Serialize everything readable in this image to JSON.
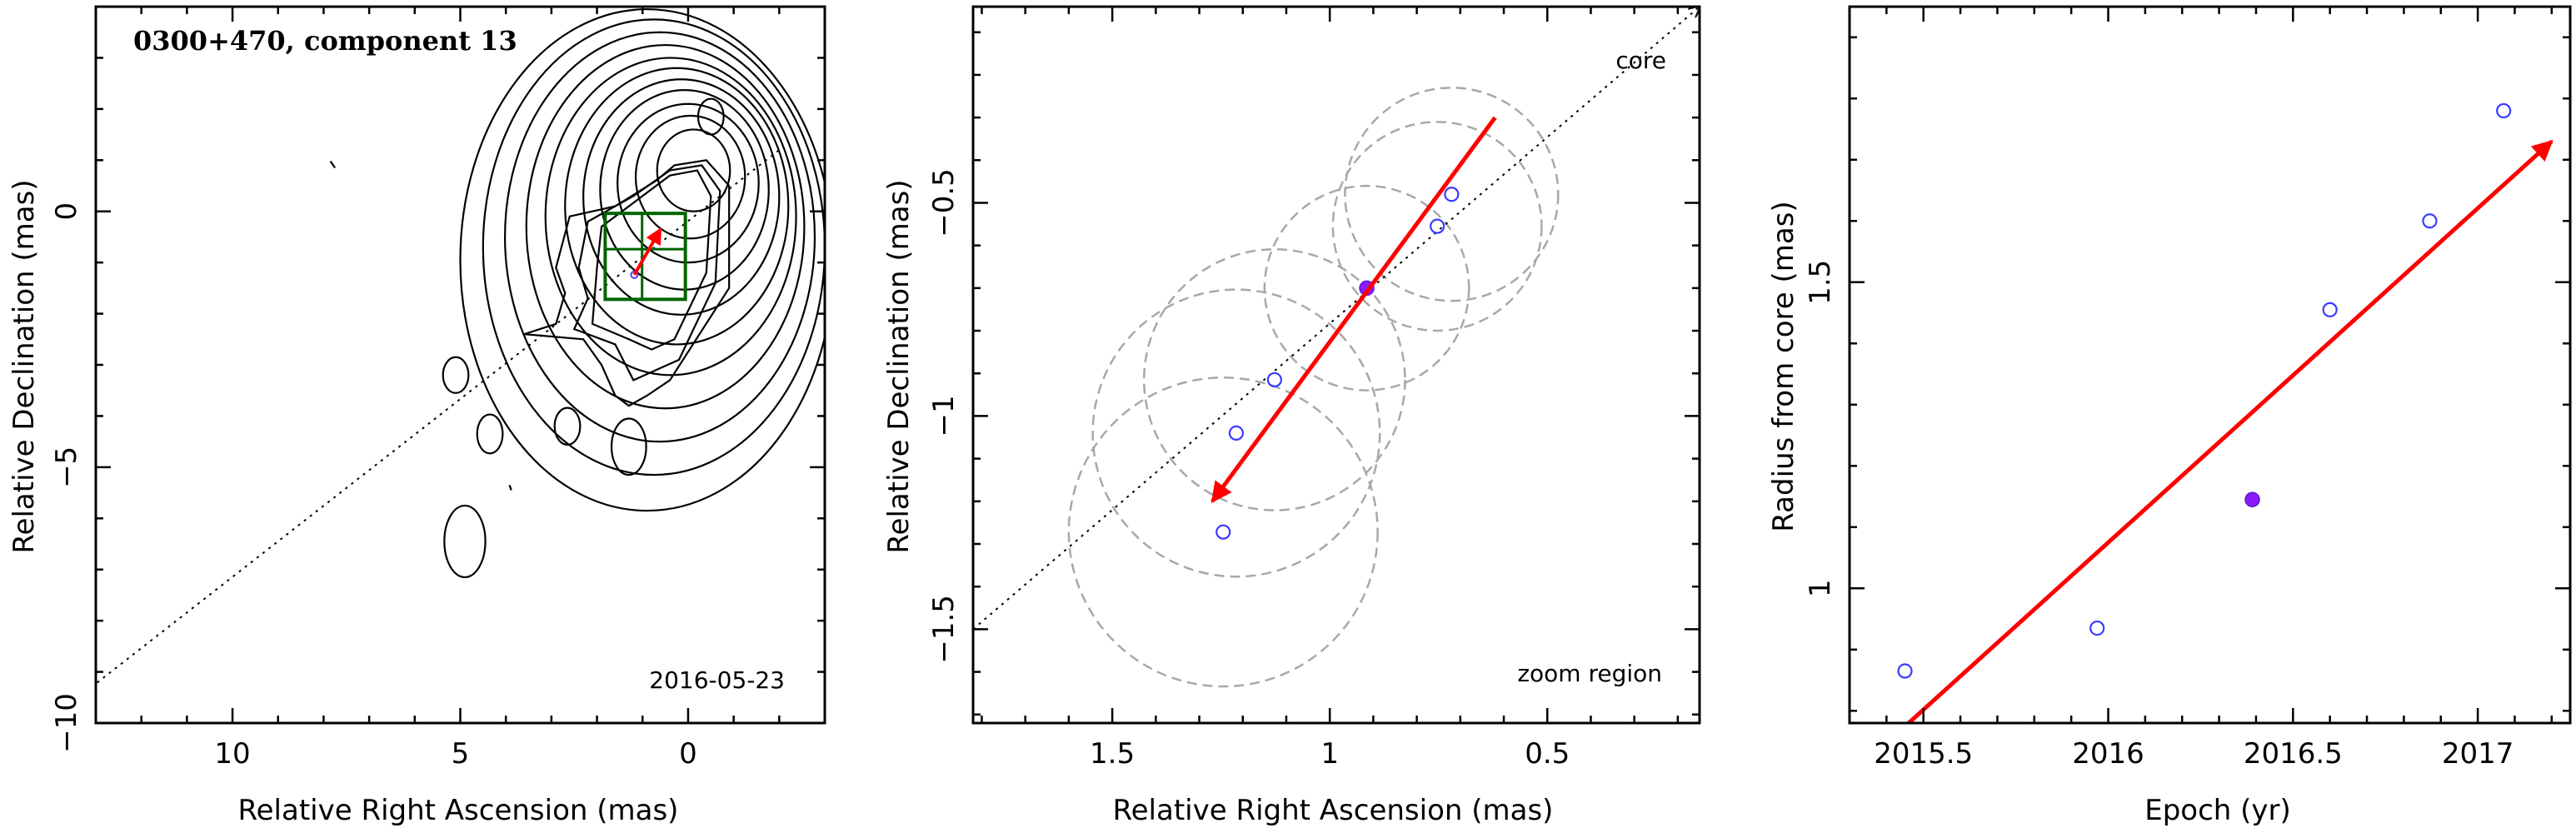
{
  "chart_data": [
    {
      "type": "scatter",
      "title": "0300+470, component 13",
      "annotation": "2016-05-23",
      "xlabel": "Relative Right Ascension (mas)",
      "ylabel": "Relative Declination (mas)",
      "xlim": [
        13,
        -3
      ],
      "ylim": [
        -10,
        4
      ],
      "xticks_major": [
        10,
        5,
        0
      ],
      "yticks_major": [
        0,
        -5,
        -10
      ],
      "direction_line": {
        "x": [
          13.1,
          -2.0
        ],
        "y": [
          -9.3,
          1.2
        ]
      },
      "component_point": {
        "x": 1.18,
        "y": -1.24
      },
      "motion_arrow": {
        "from": [
          1.18,
          -1.24
        ],
        "to": [
          0.6,
          -0.34
        ],
        "color": "#ff0000"
      },
      "zoom_box": {
        "x": [
          1.82,
          0.06
        ],
        "y": [
          -1.72,
          -0.04
        ],
        "grid_x": [
          1.82,
          1.01,
          0.06
        ],
        "grid_y": [
          -0.04,
          -0.74,
          -1.72
        ],
        "color": "#006400"
      },
      "contours": [
        {
          "type": "ellipse",
          "cx": -0.12,
          "cy": 0.8,
          "rx": 0.8,
          "ry": 0.8
        },
        {
          "type": "ellipse",
          "cx": -0.05,
          "cy": 0.67,
          "rx": 1.2,
          "ry": 1.2
        },
        {
          "type": "ellipse",
          "cx": 0.0,
          "cy": 0.55,
          "rx": 1.55,
          "ry": 1.55
        },
        {
          "type": "ellipse",
          "cx": 0.08,
          "cy": 0.42,
          "rx": 1.85,
          "ry": 1.95
        },
        {
          "type": "ellipse",
          "cx": 0.15,
          "cy": 0.28,
          "rx": 2.15,
          "ry": 2.3
        },
        {
          "type": "ellipse",
          "cx": 0.25,
          "cy": 0.1,
          "rx": 2.45,
          "ry": 2.7
        },
        {
          "type": "ellipse",
          "cx": 0.38,
          "cy": -0.1,
          "rx": 2.75,
          "ry": 3.1
        },
        {
          "type": "ellipse",
          "cx": 0.5,
          "cy": -0.3,
          "rx": 3.05,
          "ry": 3.55
        },
        {
          "type": "ellipse",
          "cx": 0.62,
          "cy": -0.5,
          "rx": 3.4,
          "ry": 4.0
        },
        {
          "type": "ellipse",
          "cx": 0.75,
          "cy": -0.7,
          "rx": 3.75,
          "ry": 4.45
        },
        {
          "type": "ellipse",
          "cx": 0.9,
          "cy": -0.95,
          "rx": 4.1,
          "ry": 4.9
        },
        {
          "type": "ellipse",
          "cx": -0.5,
          "cy": 1.85,
          "rx": 0.28,
          "ry": 0.35
        },
        {
          "type": "ellipse",
          "cx": 5.1,
          "cy": -3.2,
          "rx": 0.28,
          "ry": 0.35
        },
        {
          "type": "ellipse",
          "cx": 4.35,
          "cy": -4.35,
          "rx": 0.28,
          "ry": 0.38
        },
        {
          "type": "ellipse",
          "cx": 2.65,
          "cy": -4.2,
          "rx": 0.28,
          "ry": 0.36
        },
        {
          "type": "ellipse",
          "cx": 1.3,
          "cy": -4.6,
          "rx": 0.38,
          "ry": 0.55
        },
        {
          "type": "ellipse",
          "cx": 4.9,
          "cy": -6.45,
          "rx": 0.45,
          "ry": 0.7
        },
        {
          "type": "tick",
          "x": [
            7.85,
            7.75
          ],
          "y": [
            0.98,
            0.85
          ]
        },
        {
          "type": "tick",
          "x": [
            3.92,
            3.88
          ],
          "y": [
            -5.35,
            -5.45
          ]
        },
        {
          "type": "outer_contour",
          "x": [
            2.6,
            2.9,
            2.7,
            2.9,
            3.6,
            2.3,
            1.9,
            1.6,
            1.3,
            0.9,
            0.4,
            -0.9,
            -0.9,
            -0.4,
            0.3,
            0.7,
            1.6
          ],
          "y": [
            -0.1,
            -1.1,
            -1.6,
            -2.2,
            -2.4,
            -2.5,
            -3.0,
            -3.6,
            -3.8,
            -3.6,
            -3.3,
            -1.5,
            0.5,
            1.0,
            0.9,
            0.6,
            0.1
          ]
        },
        {
          "type": "second_contour",
          "x": [
            2.2,
            2.4,
            2.2,
            2.5,
            1.6,
            1.2,
            0.7,
            0.2,
            -0.6,
            -0.7,
            -0.3,
            0.4,
            1.2
          ],
          "y": [
            -0.2,
            -1.1,
            -1.7,
            -2.3,
            -2.6,
            -3.3,
            -3.1,
            -2.9,
            -1.4,
            0.4,
            0.9,
            0.8,
            0.3
          ]
        },
        {
          "type": "third_contour",
          "x": [
            1.9,
            2.0,
            2.1,
            1.3,
            0.8,
            0.3,
            -0.4,
            -0.5,
            -0.2,
            0.4,
            1.0
          ],
          "y": [
            -0.3,
            -1.1,
            -2.2,
            -2.5,
            -2.7,
            -2.5,
            -1.2,
            0.3,
            0.8,
            0.7,
            0.3
          ]
        }
      ]
    },
    {
      "type": "scatter",
      "annotation_core": "core",
      "annotation_zoom": "zoom region",
      "xlabel": "Relative Right Ascension (mas)",
      "ylabel": "Relative Declination (mas)",
      "xlim": [
        1.82,
        0.15
      ],
      "ylim": [
        -1.72,
        -0.04
      ],
      "xticks_major": [
        1.5,
        1,
        0.5
      ],
      "yticks_major": [
        -0.5,
        -1,
        -1.5
      ],
      "direction_line": {
        "x": [
          1.82,
          0.15
        ],
        "y": [
          -1.5,
          -0.04
        ]
      },
      "open_points": [
        {
          "x": 1.245,
          "y": -1.272
        },
        {
          "x": 1.215,
          "y": -1.04
        },
        {
          "x": 1.127,
          "y": -0.915
        },
        {
          "x": 0.753,
          "y": -0.555
        },
        {
          "x": 0.72,
          "y": -0.48
        }
      ],
      "filled_point": {
        "x": 0.915,
        "y": -0.7
      },
      "circles": [
        {
          "x": 1.245,
          "y": -1.272,
          "r": 0.355
        },
        {
          "x": 1.215,
          "y": -1.04,
          "r": 0.33
        },
        {
          "x": 1.127,
          "y": -0.915,
          "r": 0.3
        },
        {
          "x": 0.915,
          "y": -0.7,
          "r": 0.235
        },
        {
          "x": 0.753,
          "y": -0.555,
          "r": 0.24
        },
        {
          "x": 0.72,
          "y": -0.48,
          "r": 0.245
        }
      ],
      "motion_arrow": {
        "from": [
          0.62,
          -0.3
        ],
        "to": [
          1.27,
          -1.2
        ],
        "color": "#ff0000"
      }
    },
    {
      "type": "scatter",
      "xlabel": "Epoch (yr)",
      "ylabel": "Radius from core (mas)",
      "xlim": [
        2015.3,
        2017.25
      ],
      "ylim": [
        0.78,
        1.95
      ],
      "xticks_major": [
        2015.5,
        2016,
        2016.5,
        2017
      ],
      "yticks_major": [
        1,
        1.5
      ],
      "open_points": [
        {
          "x": 2015.45,
          "y": 0.865
        },
        {
          "x": 2015.97,
          "y": 0.935
        },
        {
          "x": 2016.6,
          "y": 1.455
        },
        {
          "x": 2016.87,
          "y": 1.6
        },
        {
          "x": 2017.07,
          "y": 1.78
        }
      ],
      "filled_point": {
        "x": 2016.39,
        "y": 1.145
      },
      "trend_arrow": {
        "from": [
          2015.46,
          0.78
        ],
        "to": [
          2017.2,
          1.73
        ],
        "color": "#ff0000"
      }
    }
  ]
}
